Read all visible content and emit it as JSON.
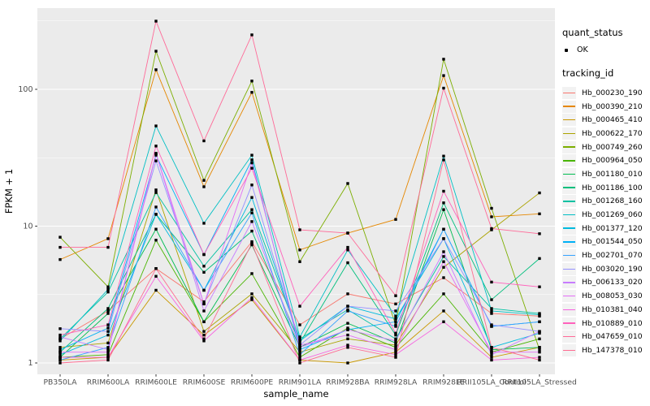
{
  "chart_data": {
    "type": "line",
    "title": "",
    "xlabel": "sample_name",
    "ylabel": "FPKM + 1",
    "y_scale": "log10",
    "y_ticks": [
      1,
      10,
      100
    ],
    "y_tick_labels": [
      "1",
      "10",
      "100"
    ],
    "y_minor_ticks": [
      3.162,
      31.62,
      316.2
    ],
    "ylim": [
      0.83,
      390
    ],
    "grid": "on",
    "legend_position": "right",
    "panel_background": "#EBEBEB",
    "gridline_color": "#FFFFFF",
    "point_color": "#000000",
    "categories": [
      "PB350LA",
      "RRIM600LA",
      "RRIM600LE",
      "RRIM600SE",
      "RRIM600PE",
      "RRIM901LA",
      "RRIM928BA",
      "RRIM928LA",
      "RRIM928LE",
      "RRII105LA_Control",
      "RRII105LA_Stressed"
    ],
    "series": [
      {
        "name": "Hb_000230_190",
        "color": "#F8766D",
        "values": [
          1.5,
          2.4,
          4.9,
          2.8,
          7.7,
          1.9,
          3.2,
          2.7,
          4.2,
          2.3,
          2.2
        ]
      },
      {
        "name": "Hb_000390_210",
        "color": "#E58700",
        "values": [
          5.7,
          8.1,
          139,
          19.4,
          95,
          6.7,
          8.9,
          11.2,
          126,
          11.7,
          12.3
        ]
      },
      {
        "name": "Hb_000465_410",
        "color": "#C99800",
        "values": [
          1.05,
          1.1,
          3.4,
          1.6,
          2.9,
          1.05,
          1.0,
          1.2,
          2.4,
          1.1,
          1.3
        ]
      },
      {
        "name": "Hb_000622_170",
        "color": "#ABA300",
        "values": [
          1.3,
          1.4,
          18.4,
          1.7,
          3.2,
          1.2,
          1.5,
          1.35,
          5.0,
          9.4,
          17.5
        ]
      },
      {
        "name": "Hb_000749_260",
        "color": "#7CAE00",
        "values": [
          8.3,
          3.6,
          190,
          21.6,
          115,
          5.5,
          20.5,
          1.9,
          166,
          13.5,
          1.25
        ]
      },
      {
        "name": "Hb_000964_050",
        "color": "#49B500",
        "values": [
          1.1,
          1.15,
          7.9,
          2.0,
          4.5,
          1.1,
          1.8,
          1.3,
          3.2,
          1.2,
          1.5
        ]
      },
      {
        "name": "Hb_001180_010",
        "color": "#00BC51",
        "values": [
          1.1,
          2.3,
          9.5,
          2.0,
          7.3,
          1.3,
          1.95,
          1.4,
          13.2,
          1.25,
          1.3
        ]
      },
      {
        "name": "Hb_001186_100",
        "color": "#00BF7D",
        "values": [
          1.2,
          2.5,
          12.2,
          4.6,
          9.2,
          1.4,
          5.4,
          1.6,
          14.8,
          2.9,
          5.8
        ]
      },
      {
        "name": "Hb_001268_160",
        "color": "#00C1A2",
        "values": [
          1.5,
          3.3,
          17.6,
          5.1,
          13.2,
          1.5,
          2.45,
          1.5,
          6.0,
          2.5,
          2.3
        ]
      },
      {
        "name": "Hb_001269_060",
        "color": "#00BFC4",
        "values": [
          1.45,
          3.45,
          54,
          10.5,
          33,
          1.55,
          6.7,
          2.2,
          32.5,
          2.4,
          2.25
        ]
      },
      {
        "name": "Hb_001377_120",
        "color": "#00BADE",
        "values": [
          1.15,
          1.6,
          12.2,
          3.4,
          16.2,
          1.45,
          2.6,
          2.1,
          8.1,
          1.3,
          1.65
        ]
      },
      {
        "name": "Hb_001544_050",
        "color": "#00B0F6",
        "values": [
          1.25,
          1.8,
          33,
          6.2,
          30.5,
          1.25,
          1.75,
          2.0,
          9.5,
          1.85,
          2.0
        ]
      },
      {
        "name": "Hb_002701_070",
        "color": "#35A2FF",
        "values": [
          1.05,
          1.3,
          13.8,
          3.4,
          12.5,
          1.15,
          2.4,
          1.85,
          9.5,
          1.85,
          2.0
        ]
      },
      {
        "name": "Hb_003020_190",
        "color": "#9590FF",
        "values": [
          1.78,
          1.7,
          30,
          2.7,
          20,
          1.35,
          2.6,
          2.4,
          8.1,
          1.9,
          1.7
        ]
      },
      {
        "name": "Hb_006133_020",
        "color": "#C77CFF",
        "values": [
          1.55,
          1.25,
          34,
          2.4,
          10.8,
          1.3,
          1.75,
          1.45,
          6.5,
          1.15,
          1.7
        ]
      },
      {
        "name": "Hb_008053_030",
        "color": "#E36EF6",
        "values": [
          1.2,
          1.2,
          34,
          2.7,
          29,
          1.35,
          1.6,
          1.25,
          5.5,
          1.2,
          1.2
        ]
      },
      {
        "name": "Hb_010381_040",
        "color": "#F763E0",
        "values": [
          1.1,
          1.1,
          4.3,
          1.45,
          3.0,
          1.05,
          1.35,
          1.15,
          2.0,
          1.05,
          1.1
        ]
      },
      {
        "name": "Hb_010889_010",
        "color": "#FF62BC",
        "values": [
          1.6,
          1.9,
          38.5,
          6.2,
          26.5,
          2.6,
          7.0,
          1.65,
          18,
          3.9,
          3.6
        ]
      },
      {
        "name": "Hb_047659_010",
        "color": "#FF6A98",
        "values": [
          7.0,
          7.0,
          315,
          42,
          250,
          9.4,
          8.9,
          3.1,
          102,
          9.6,
          8.8
        ]
      },
      {
        "name": "Hb_147378_010",
        "color": "#FF6C92",
        "values": [
          1.0,
          1.05,
          4.9,
          1.5,
          7.5,
          1.0,
          1.3,
          1.1,
          30.5,
          1.3,
          1.05
        ]
      }
    ]
  },
  "legend": {
    "quant_status": {
      "title": "quant_status",
      "items": [
        {
          "label": "OK",
          "marker": "point-icon"
        }
      ]
    },
    "tracking_id": {
      "title": "tracking_id"
    }
  }
}
